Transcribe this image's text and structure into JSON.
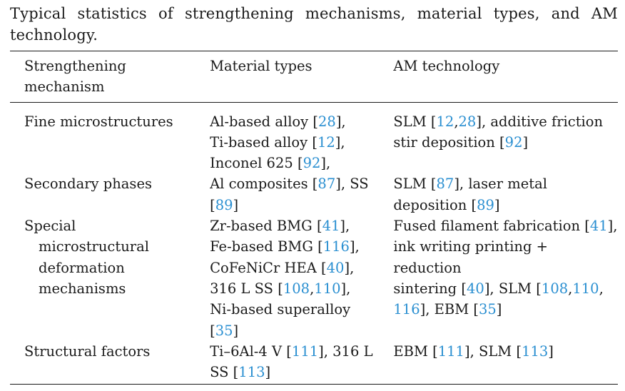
{
  "caption": "Typical statistics of strengthening mechanisms, material types, and AM technology.",
  "table": {
    "headers": {
      "mechanism": [
        "Strengthening",
        "mechanism"
      ],
      "materials": "Material types",
      "technology": "AM technology"
    },
    "rows": [
      {
        "mechanism": "Fine microstructures",
        "materials": [
          [
            {
              "t": "Al-based alloy ["
            },
            {
              "t": "28",
              "ref": true
            },
            {
              "t": "],"
            }
          ],
          [
            {
              "t": "Ti-based alloy ["
            },
            {
              "t": "12",
              "ref": true
            },
            {
              "t": "],"
            }
          ],
          [
            {
              "t": "Inconel 625 ["
            },
            {
              "t": "92",
              "ref": true
            },
            {
              "t": "],"
            }
          ]
        ],
        "technology": [
          [
            {
              "t": "SLM ["
            },
            {
              "t": "12",
              "ref": true
            },
            {
              "t": ","
            },
            {
              "t": "28",
              "ref": true
            },
            {
              "t": "], additive friction"
            }
          ],
          [
            {
              "t": "stir deposition ["
            },
            {
              "t": "92",
              "ref": true
            },
            {
              "t": "]"
            }
          ]
        ]
      },
      {
        "mechanism": "Secondary phases",
        "materials": [
          [
            {
              "t": "Al composites ["
            },
            {
              "t": "87",
              "ref": true
            },
            {
              "t": "], SS"
            }
          ],
          [
            {
              "t": "["
            },
            {
              "t": "89",
              "ref": true
            },
            {
              "t": "]"
            }
          ]
        ],
        "technology": [
          [
            {
              "t": "SLM ["
            },
            {
              "t": "87",
              "ref": true
            },
            {
              "t": "], laser metal"
            }
          ],
          [
            {
              "t": "deposition ["
            },
            {
              "t": "89",
              "ref": true
            },
            {
              "t": "]"
            }
          ]
        ]
      },
      {
        "mechanism_lines": [
          "Special",
          "microstructural",
          "deformation",
          "mechanisms"
        ],
        "materials": [
          [
            {
              "t": "Zr-based BMG ["
            },
            {
              "t": "41",
              "ref": true
            },
            {
              "t": "],"
            }
          ],
          [
            {
              "t": "Fe-based BMG ["
            },
            {
              "t": "116",
              "ref": true
            },
            {
              "t": "],"
            }
          ],
          [
            {
              "t": "CoFeNiCr HEA ["
            },
            {
              "t": "40",
              "ref": true
            },
            {
              "t": "],"
            }
          ],
          [
            {
              "t": "316 L SS ["
            },
            {
              "t": "108",
              "ref": true
            },
            {
              "t": ","
            },
            {
              "t": "110",
              "ref": true
            },
            {
              "t": "],"
            }
          ],
          [
            {
              "t": "Ni-based superalloy"
            }
          ],
          [
            {
              "t": "["
            },
            {
              "t": "35",
              "ref": true
            },
            {
              "t": "]"
            }
          ]
        ],
        "technology": [
          [
            {
              "t": "Fused filament fabrication ["
            },
            {
              "t": "41",
              "ref": true
            },
            {
              "t": "],"
            }
          ],
          [
            {
              "t": "ink writing printing + reduction"
            }
          ],
          [
            {
              "t": "sintering ["
            },
            {
              "t": "40",
              "ref": true
            },
            {
              "t": "], SLM ["
            },
            {
              "t": "108",
              "ref": true
            },
            {
              "t": ","
            },
            {
              "t": "110",
              "ref": true
            },
            {
              "t": ","
            }
          ],
          [
            {
              "t": "116",
              "ref": true
            },
            {
              "t": "], EBM ["
            },
            {
              "t": "35",
              "ref": true
            },
            {
              "t": "]"
            }
          ]
        ]
      },
      {
        "mechanism": "Structural factors",
        "materials": [
          [
            {
              "t": "Ti–6Al-4 V ["
            },
            {
              "t": "111",
              "ref": true
            },
            {
              "t": "], 316 L"
            }
          ],
          [
            {
              "t": "SS ["
            },
            {
              "t": "113",
              "ref": true
            },
            {
              "t": "]"
            }
          ]
        ],
        "technology": [
          [
            {
              "t": "EBM ["
            },
            {
              "t": "111",
              "ref": true
            },
            {
              "t": "], SLM ["
            },
            {
              "t": "113",
              "ref": true
            },
            {
              "t": "]"
            }
          ]
        ]
      }
    ]
  },
  "colors": {
    "text": "#1a1a1a",
    "reference_link": "#2a8fd1"
  }
}
